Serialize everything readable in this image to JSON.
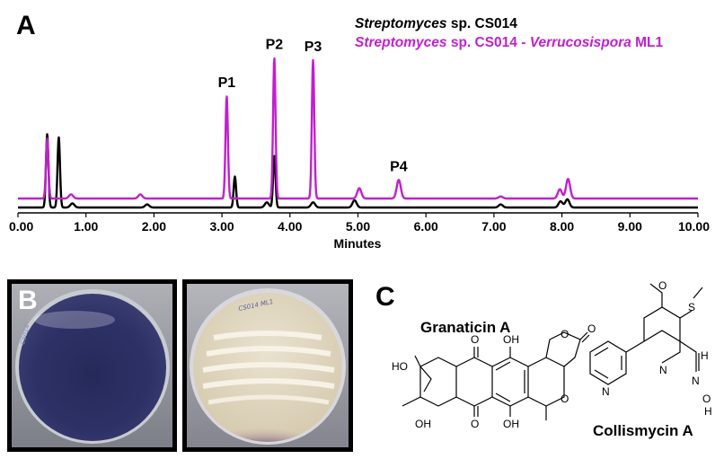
{
  "panels": {
    "a_label": "A",
    "b_label": "B",
    "c_label": "C"
  },
  "legend": {
    "black": {
      "italic": "Streptomyces",
      "rest": " sp. CS014",
      "color": "#000000"
    },
    "magenta": {
      "italic1": "Streptomyces",
      "mid": " sp. CS014 - ",
      "italic2": "Verrucosispora",
      "rest": " ML1",
      "color": "#c21fcf"
    }
  },
  "chart_data": {
    "type": "line",
    "xlabel": "Minutes",
    "xlim": [
      0,
      10
    ],
    "xticks": [
      "0.00",
      "1.00",
      "2.00",
      "3.00",
      "4.00",
      "5.00",
      "6.00",
      "7.00",
      "8.00",
      "9.00",
      "10.00"
    ],
    "ylabel": "",
    "peak_labels": [
      {
        "label": "P1",
        "x": 3.07
      },
      {
        "label": "P2",
        "x": 3.77
      },
      {
        "label": "P3",
        "x": 4.34
      },
      {
        "label": "P4",
        "x": 5.6
      }
    ],
    "series": [
      {
        "name": "Streptomyces sp. CS014",
        "color": "#000000",
        "peaks": [
          {
            "x": 0.43,
            "h": 0.71
          },
          {
            "x": 0.6,
            "h": 0.68
          },
          {
            "x": 0.8,
            "h": 0.04
          },
          {
            "x": 1.9,
            "h": 0.03
          },
          {
            "x": 3.19,
            "h": 0.3
          },
          {
            "x": 3.66,
            "h": 0.05
          },
          {
            "x": 3.77,
            "h": 0.5
          },
          {
            "x": 4.34,
            "h": 0.05
          },
          {
            "x": 4.95,
            "h": 0.07
          },
          {
            "x": 7.1,
            "h": 0.03
          },
          {
            "x": 7.98,
            "h": 0.06
          },
          {
            "x": 8.08,
            "h": 0.08
          }
        ]
      },
      {
        "name": "Streptomyces sp. CS014 - Verrucosispora ML1",
        "color": "#c21fcf",
        "peaks": [
          {
            "x": 0.43,
            "h": 0.58
          },
          {
            "x": 0.78,
            "h": 0.04
          },
          {
            "x": 1.8,
            "h": 0.04
          },
          {
            "x": 3.07,
            "h": 0.99
          },
          {
            "x": 3.77,
            "h": 1.36
          },
          {
            "x": 4.34,
            "h": 1.34
          },
          {
            "x": 5.02,
            "h": 0.1
          },
          {
            "x": 5.6,
            "h": 0.18
          },
          {
            "x": 7.1,
            "h": 0.02
          },
          {
            "x": 7.97,
            "h": 0.09
          },
          {
            "x": 8.09,
            "h": 0.19
          }
        ]
      }
    ]
  },
  "plates": {
    "left_writing": "CS014",
    "right_writing": "CS014 ML1"
  },
  "chemicals": {
    "granaticin": {
      "name": "Granaticin A",
      "atoms": {
        "o_ketone_top": "O",
        "oh_top": "OH",
        "oh_left": "HO",
        "o_ketone_bottom": "O",
        "oh_bottom": "OH",
        "oh_low_left": "OH",
        "o_lactone_ring": "O",
        "o_lactone_carbonyl": "O",
        "o_pyran": "O"
      }
    },
    "collismycin": {
      "name": "Collismycin A",
      "atoms": {
        "o_methoxy": "O",
        "s": "S",
        "n_pyr1": "N",
        "n_pyr2": "N",
        "h_ald": "H",
        "n_oxime": "N",
        "o_oxime": "O",
        "h_oxime": "H"
      }
    }
  }
}
